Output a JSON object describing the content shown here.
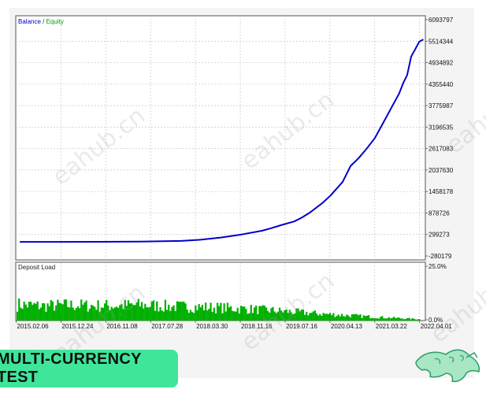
{
  "chart_data": [
    {
      "type": "line",
      "legend": [
        {
          "name": "Balance",
          "color": "#0000cc"
        },
        {
          "name": "Equity",
          "color": "#00a000"
        }
      ],
      "legend_separator": " / ",
      "legend_placement": "top-left",
      "y_ticks": [
        "6093797",
        "5514344",
        "4934892",
        "4355440",
        "3775987",
        "3196535",
        "2617083",
        "2037630",
        "1458178",
        "878726",
        "299273",
        "-280179"
      ],
      "ylim": [
        -280179,
        6093797
      ],
      "grid": true,
      "series": [
        {
          "name": "Balance",
          "x": [
            0,
            0.1,
            0.2,
            0.3,
            0.4,
            0.45,
            0.5,
            0.55,
            0.6,
            0.62,
            0.65,
            0.68,
            0.7,
            0.72,
            0.75,
            0.77,
            0.8,
            0.82,
            0.84,
            0.86,
            0.88,
            0.9,
            0.92,
            0.94,
            0.95,
            0.96,
            0.97,
            0.98,
            0.985,
            0.99,
            1.0
          ],
          "values": [
            100000,
            100000,
            102000,
            108000,
            125000,
            160000,
            220000,
            300000,
            400000,
            460000,
            560000,
            650000,
            760000,
            900000,
            1150000,
            1350000,
            1720000,
            2150000,
            2360000,
            2620000,
            2900000,
            3300000,
            3700000,
            4100000,
            4380000,
            4600000,
            5100000,
            5300000,
            5400000,
            5500000,
            5560000
          ]
        },
        {
          "name": "Equity",
          "x": [
            0,
            0.1,
            0.2,
            0.3,
            0.4,
            0.45,
            0.5,
            0.55,
            0.6,
            0.62,
            0.65,
            0.68,
            0.7,
            0.72,
            0.75,
            0.77,
            0.8,
            0.82,
            0.84,
            0.86,
            0.88,
            0.9,
            0.92,
            0.94,
            0.95,
            0.96,
            0.97,
            0.98,
            0.985,
            0.99,
            1.0
          ],
          "values": [
            100000,
            100000,
            102000,
            108000,
            125000,
            160000,
            220000,
            300000,
            400000,
            460000,
            560000,
            650000,
            760000,
            900000,
            1150000,
            1350000,
            1720000,
            2150000,
            2360000,
            2620000,
            2900000,
            3300000,
            3700000,
            4100000,
            4380000,
            4600000,
            5100000,
            5300000,
            5400000,
            5500000,
            5560000
          ]
        }
      ]
    },
    {
      "type": "bar",
      "title": "Deposit Load",
      "y_ticks": [
        "25.0%",
        "0.0%"
      ],
      "ylim": [
        0,
        25
      ],
      "x_ticks": [
        "2015.02.06",
        "2015.12.24",
        "2016.11.08",
        "2017.07.28",
        "2018.03.30",
        "2018.11.16",
        "2019.07.16",
        "2020.04.13",
        "2021.03.22",
        "2022.04.01"
      ],
      "values_description_only": "",
      "values": [
        7.5,
        6.8,
        7.2,
        6.9,
        7.0,
        7.3,
        6.6,
        6.4,
        6.0,
        5.5,
        4.8,
        4.0,
        3.2,
        2.5,
        1.8,
        1.2,
        0.6
      ],
      "bar_color": "#00b000"
    }
  ],
  "watermark_text": "eahub.cn",
  "badge_label": "MULTI-CURRENCY TEST",
  "colors": {
    "accent": "#3fe69a",
    "balance": "#0000cc",
    "equity": "#00a000",
    "bars": "#00b000",
    "grid": "#c8c8c8",
    "plot_bg": "#ffffff",
    "frame_bg": "#f4f4f4"
  },
  "logo_icon": "leopard-logo-icon"
}
